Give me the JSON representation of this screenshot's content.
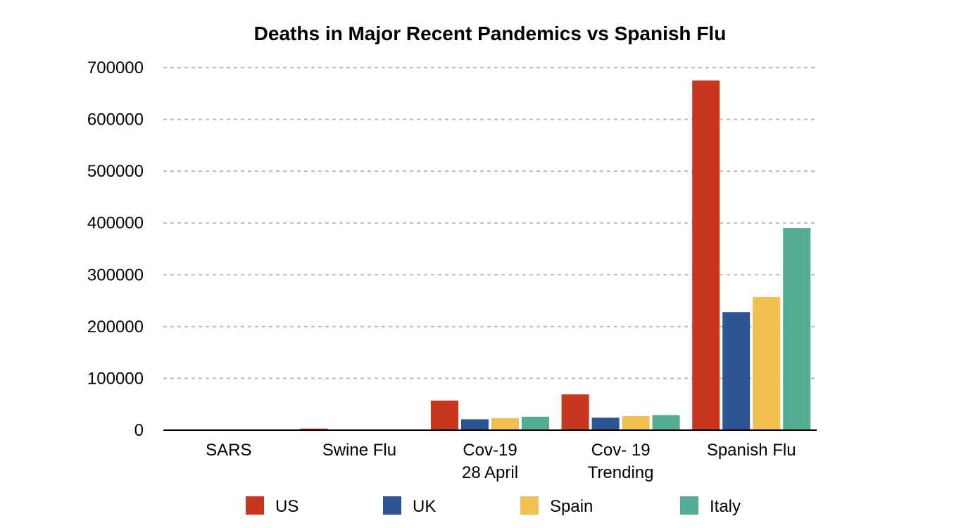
{
  "chart_data": {
    "type": "bar",
    "title": "Deaths in Major Recent Pandemics vs Spanish Flu",
    "categories": [
      [
        "SARS"
      ],
      [
        "Swine Flu"
      ],
      [
        "Cov-19",
        "28 April"
      ],
      [
        "Cov- 19",
        "Trending"
      ],
      [
        "Spanish Flu"
      ]
    ],
    "series": [
      {
        "name": "US",
        "color": "#c8361e",
        "values": [
          0,
          3000,
          57000,
          69000,
          675000
        ]
      },
      {
        "name": "UK",
        "color": "#2d5593",
        "values": [
          0,
          400,
          21000,
          24000,
          228000
        ]
      },
      {
        "name": "Spain",
        "color": "#f0c050",
        "values": [
          0,
          300,
          23000,
          27000,
          257000
        ]
      },
      {
        "name": "Italy",
        "color": "#52ad94",
        "values": [
          0,
          200,
          26000,
          29000,
          390000
        ]
      }
    ],
    "yticks": [
      "0",
      "100000",
      "200000",
      "300000",
      "400000",
      "500000",
      "600000",
      "700000"
    ],
    "ylim": [
      0,
      700000
    ],
    "xlabel": "",
    "ylabel": "",
    "grid": true,
    "legend": "bottom"
  }
}
